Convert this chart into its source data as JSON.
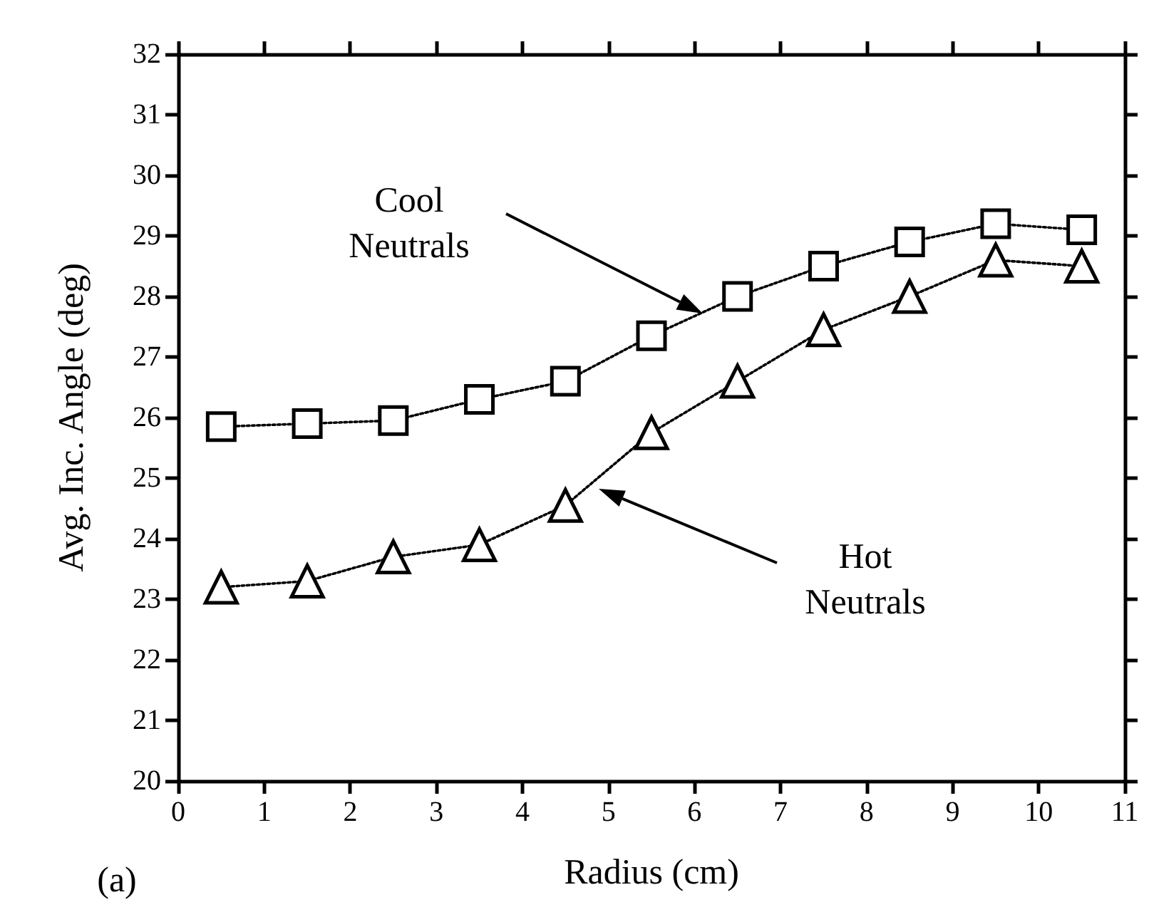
{
  "chart_data": {
    "type": "line",
    "xlabel": "Radius (cm)",
    "ylabel": "Avg. Inc. Angle (deg)",
    "xlim": [
      0,
      11
    ],
    "xticks": [
      0,
      1,
      2,
      3,
      4,
      5,
      6,
      7,
      8,
      9,
      10,
      11
    ],
    "ylim": [
      20,
      32
    ],
    "yticks": [
      20,
      21,
      22,
      23,
      24,
      25,
      26,
      27,
      28,
      29,
      30,
      31,
      32
    ],
    "grid": false,
    "line_style": "dotted",
    "x": [
      0.5,
      1.5,
      2.5,
      3.5,
      4.5,
      5.5,
      6.5,
      7.5,
      8.5,
      9.5,
      10.5
    ],
    "series": [
      {
        "color": "#000000",
        "marker": "square",
        "values": [
          25.85,
          25.9,
          25.95,
          26.3,
          26.6,
          27.35,
          28.0,
          28.5,
          28.9,
          29.2,
          29.1
        ]
      },
      {
        "color": "#000000",
        "marker": "triangle",
        "values": [
          23.2,
          23.3,
          23.7,
          23.9,
          24.55,
          25.75,
          26.6,
          27.45,
          28.0,
          28.6,
          28.5
        ]
      }
    ],
    "annotations": [
      "Cool Neutrals",
      "Hot Neutrals",
      "(a)"
    ]
  }
}
